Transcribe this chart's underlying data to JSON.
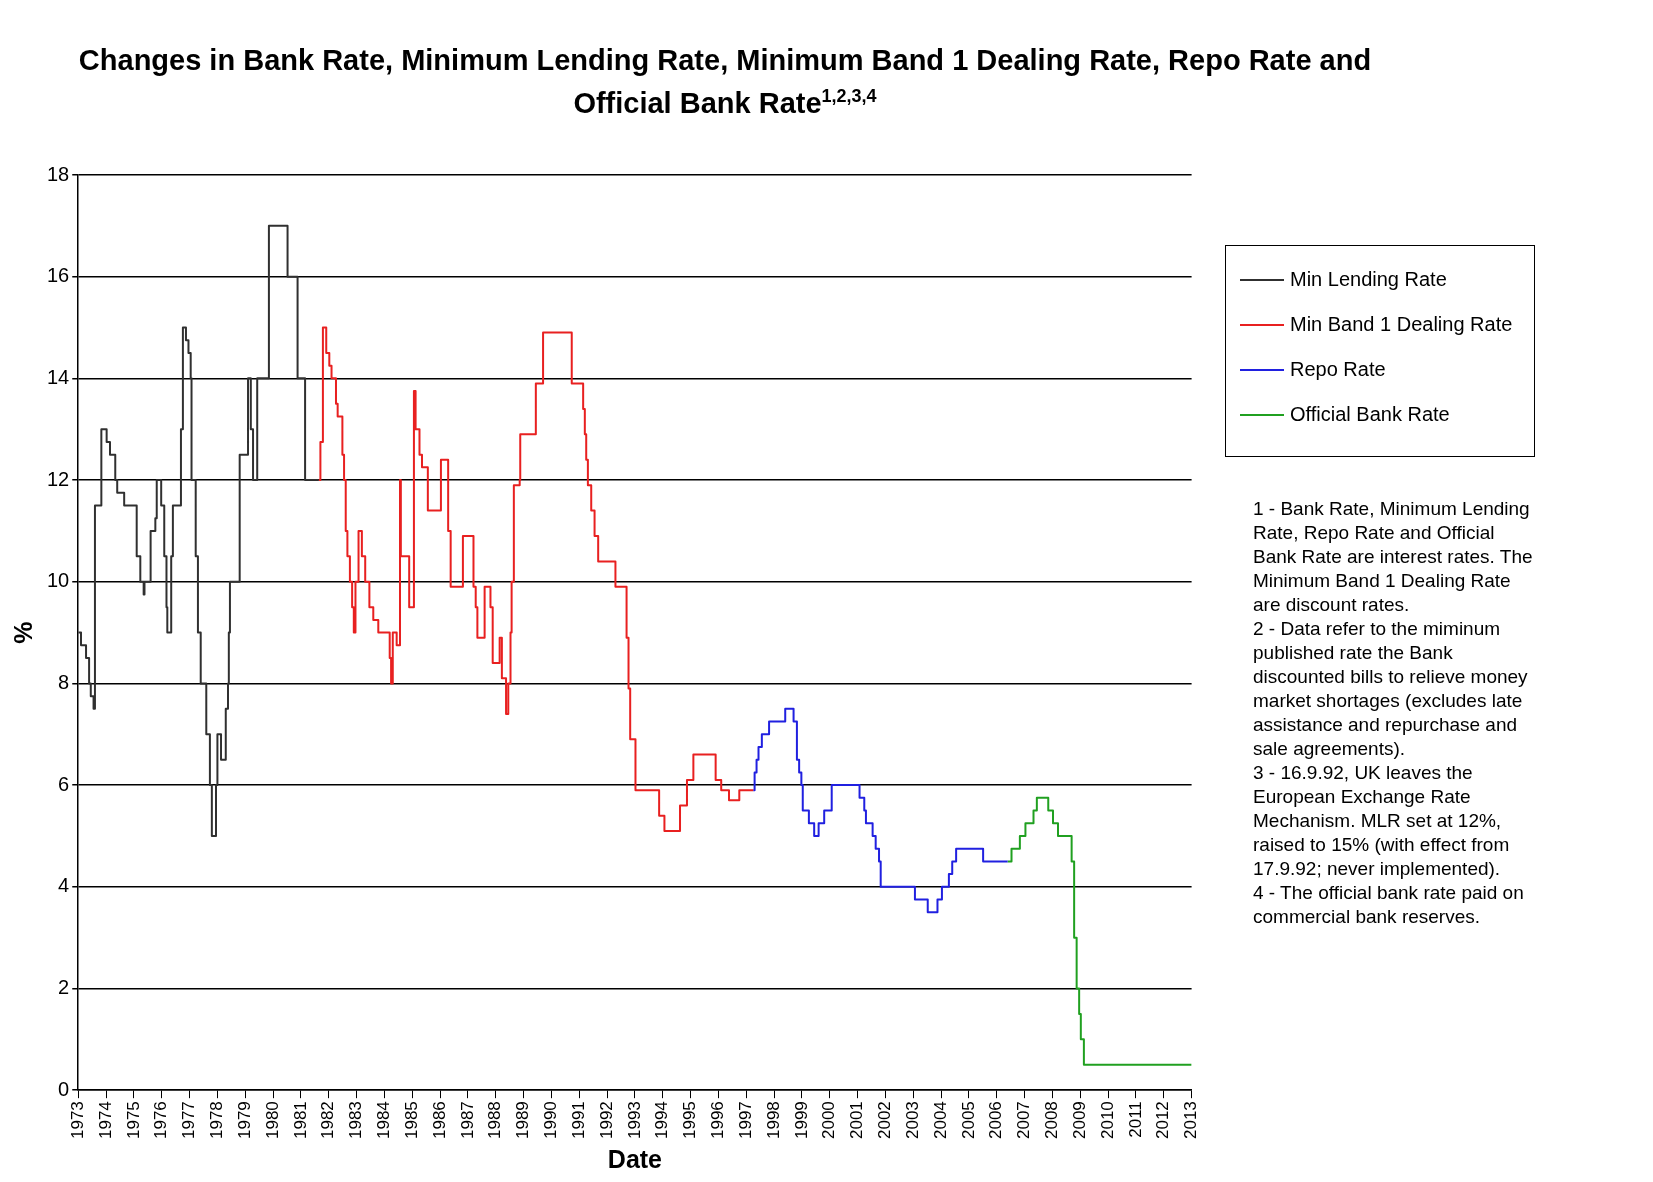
{
  "chart_data": {
    "type": "step",
    "title": "Changes in Bank Rate, Minimum Lending Rate, Minimum Band 1 Dealing Rate, Repo Rate and Official Bank Rate$^{1,2,3,4}$",
    "xlabel": "Date",
    "ylabel": "%",
    "xlim": [
      1973,
      2013
    ],
    "xticks": [
      1973,
      1974,
      1975,
      1976,
      1977,
      1978,
      1979,
      1980,
      1981,
      1982,
      1983,
      1984,
      1985,
      1986,
      1987,
      1988,
      1989,
      1990,
      1991,
      1992,
      1993,
      1994,
      1995,
      1996,
      1997,
      1998,
      1999,
      2000,
      2001,
      2002,
      2003,
      2004,
      2005,
      2006,
      2007,
      2008,
      2009,
      2010,
      2011,
      2012,
      2013
    ],
    "ylim": [
      0,
      18
    ],
    "yticks": [
      0,
      2,
      4,
      6,
      8,
      10,
      12,
      14,
      16,
      18
    ],
    "grid": "y",
    "legend": "right",
    "marker": "none",
    "line_style": "solid",
    "series": [
      {
        "name": "Min Lending Rate",
        "color": "#303030",
        "x": [
          1973,
          1973.1,
          1973.28,
          1973.39,
          1973.45,
          1973.55,
          1973.6,
          1973.83,
          1974.02,
          1974.14,
          1974.33,
          1974.4,
          1974.65,
          1975.1,
          1975.23,
          1975.35,
          1975.38,
          1975.6,
          1975.77,
          1975.82,
          1975.98,
          1976.09,
          1976.17,
          1976.2,
          1976.34,
          1976.4,
          1976.69,
          1976.76,
          1976.87,
          1976.96,
          1977.04,
          1977.07,
          1977.22,
          1977.3,
          1977.4,
          1977.6,
          1977.73,
          1977.8,
          1977.95,
          1978.0,
          1978.13,
          1978.3,
          1978.38,
          1978.41,
          1978.45,
          1978.8,
          1979.1,
          1979.2,
          1979.28,
          1979.43,
          1979.85,
          1980.52,
          1980.88,
          1981.15,
          1981.64
        ],
        "values": [
          9,
          8.75,
          8.5,
          8,
          7.75,
          7.5,
          11.5,
          13,
          12.75,
          12.5,
          12,
          11.75,
          11.5,
          10.5,
          10,
          9.75,
          10,
          11,
          11.25,
          12,
          11.5,
          10.5,
          9.5,
          9,
          10.5,
          11.5,
          13,
          15,
          14.75,
          14.5,
          14,
          12,
          10.5,
          9,
          8,
          7,
          6,
          5,
          6,
          7,
          6.5,
          7.5,
          8,
          9,
          10,
          12.5,
          14,
          13,
          12,
          14,
          17,
          16,
          14,
          12,
          12
        ]
      },
      {
        "name": "Min Band 1 Dealing Rate",
        "color": "#e82020",
        "x": [
          1981.64,
          1981.7,
          1981.79,
          1981.91,
          1982.02,
          1982.1,
          1982.26,
          1982.32,
          1982.49,
          1982.55,
          1982.61,
          1982.67,
          1982.76,
          1982.84,
          1982.9,
          1982.96,
          1983.07,
          1983.19,
          1983.31,
          1983.46,
          1983.6,
          1983.78,
          1984.19,
          1984.24,
          1984.3,
          1984.44,
          1984.56,
          1984.59,
          1984.89,
          1985.06,
          1985.12,
          1985.26,
          1985.35,
          1985.56,
          1986.03,
          1986.29,
          1986.38,
          1986.82,
          1987.2,
          1987.28,
          1987.34,
          1987.6,
          1987.81,
          1987.89,
          1988.14,
          1988.22,
          1988.37,
          1988.45,
          1988.53,
          1988.57,
          1988.65,
          1988.86,
          1988.88,
          1989.44,
          1989.7,
          1990.73,
          1991.14,
          1991.2,
          1991.25,
          1991.31,
          1991.43,
          1991.55,
          1991.68,
          1992.3,
          1992.7,
          1992.77,
          1992.83,
          1993.02,
          1993.87,
          1994.06,
          1994.62,
          1994.87,
          1995.1,
          1995.9,
          1996.1,
          1996.38,
          1996.75,
          1997.25
        ],
        "values": [
          12,
          12.75,
          15,
          14.5,
          14.25,
          14,
          13.5,
          13.25,
          12.5,
          12,
          11,
          10.5,
          10,
          9.5,
          9,
          10,
          11,
          10.5,
          10,
          9.5,
          9.25,
          9,
          8.5,
          8,
          9,
          8.75,
          12,
          10.5,
          9.5,
          13.75,
          13,
          12.5,
          12.25,
          11.4,
          12.4,
          11,
          9.9,
          10.9,
          9.9,
          9.5,
          8.9,
          9.9,
          9.5,
          8.4,
          8.9,
          8.1,
          7.4,
          8,
          9,
          10,
          11.9,
          12,
          12.9,
          13.9,
          14.9,
          13.9,
          13.4,
          12.9,
          12.4,
          11.9,
          11.4,
          10.9,
          10.4,
          9.9,
          8.9,
          7.9,
          6.9,
          5.9,
          5.4,
          5.1,
          5.6,
          6.1,
          6.6,
          6.1,
          5.9,
          5.7,
          5.9,
          5.9
        ]
      },
      {
        "name": "Repo Rate",
        "color": "#2020e0",
        "x": [
          1997.25,
          1997.3,
          1997.37,
          1997.44,
          1997.56,
          1997.82,
          1998.4,
          1998.7,
          1998.82,
          1998.9,
          1998.98,
          1999.03,
          1999.25,
          1999.44,
          1999.6,
          1999.8,
          2000.07,
          2001.07,
          2001.24,
          2001.3,
          2001.54,
          2001.65,
          2001.77,
          2001.83,
          2003.06,
          2003.52,
          2003.87,
          2004.03,
          2004.28,
          2004.4,
          2004.54,
          2005.51,
          2006.39
        ],
        "values": [
          5.9,
          6.25,
          6.5,
          6.75,
          7,
          7.25,
          7.5,
          7.25,
          6.5,
          6.25,
          6,
          5.5,
          5.25,
          5,
          5.25,
          5.5,
          6,
          5.75,
          5.5,
          5.25,
          5,
          4.75,
          4.5,
          4,
          3.75,
          3.5,
          3.75,
          4,
          4.25,
          4.5,
          4.75,
          4.5,
          4.5
        ]
      },
      {
        "name": "Official Bank Rate",
        "color": "#20a020",
        "x": [
          2006.39,
          2006.53,
          2006.83,
          2007.03,
          2007.32,
          2007.44,
          2007.85,
          2008.02,
          2008.2,
          2008.69,
          2008.78,
          2008.87,
          2008.96,
          2009.02,
          2009.13,
          2013
        ],
        "values": [
          4.5,
          4.75,
          5,
          5.25,
          5.5,
          5.75,
          5.5,
          5.25,
          5,
          4.5,
          3,
          2,
          1.5,
          1,
          0.5,
          0.5
        ]
      }
    ],
    "annotations": [
      "1 - Bank Rate, Minimum Lending Rate, Repo Rate and Official Bank Rate are interest rates.  The Minimum Band 1 Dealing Rate are discount rates.",
      "2 - Data refer to the miminum published rate the Bank discounted bills to relieve money market shortages (excludes late assistance and repurchase and sale agreements).",
      "3 - 16.9.92, UK leaves the European Exchange Rate Mechanism. MLR set at 12%, raised to 15% (with effect from 17.9.92; never implemented).",
      "4 - The official bank rate paid on commercial bank reserves."
    ]
  }
}
